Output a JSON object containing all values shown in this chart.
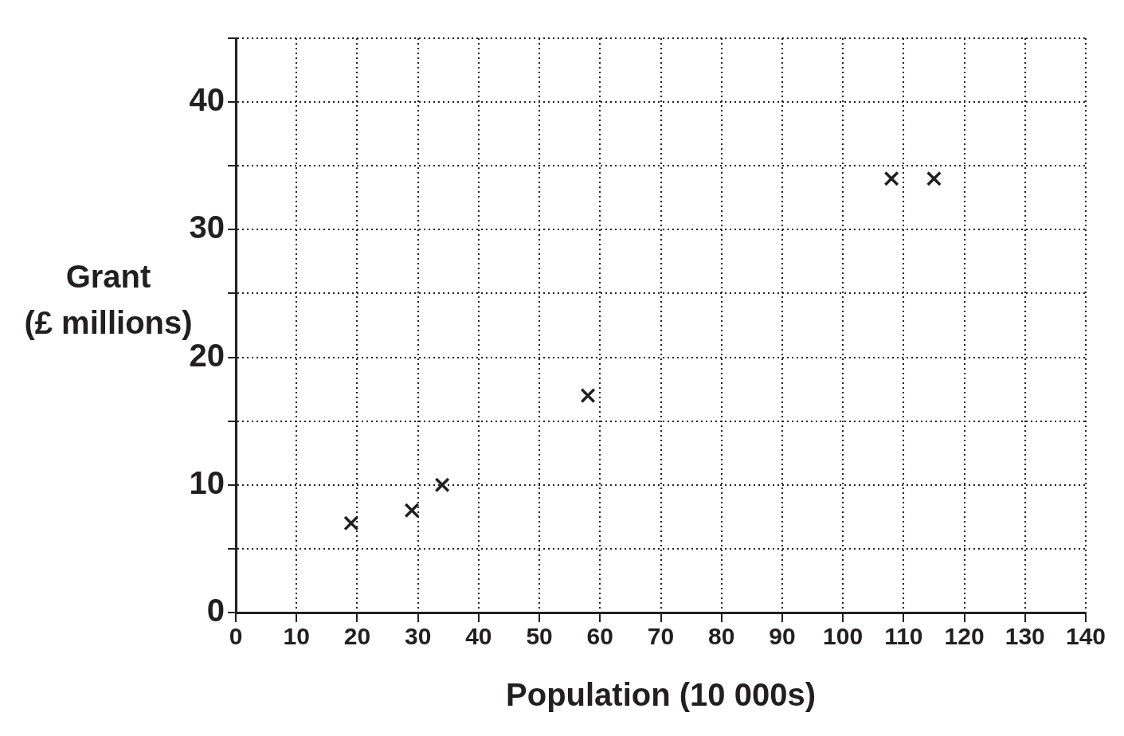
{
  "chart_data": {
    "type": "scatter",
    "xlabel": "Population (10 000s)",
    "ylabel": "Grant (£ millions)",
    "x": [
      19,
      29,
      34,
      58,
      108,
      115
    ],
    "series": [
      {
        "color": "#231f20",
        "values": [
          7,
          8,
          10,
          17,
          34,
          34
        ]
      }
    ],
    "xlim": [
      0,
      140
    ],
    "xticks": [
      0,
      10,
      20,
      30,
      40,
      50,
      60,
      70,
      80,
      90,
      100,
      110,
      120,
      130,
      140
    ],
    "ylim": [
      0,
      45
    ],
    "yticks": [
      0,
      {
        "value": 5,
        "label": null
      },
      10,
      {
        "value": 15,
        "label": null
      },
      20,
      {
        "value": 25,
        "label": null
      },
      30,
      {
        "value": 35,
        "label": null
      },
      40,
      {
        "value": 45,
        "label": null
      }
    ],
    "grid": true,
    "marker": "cross",
    "legend": false
  }
}
